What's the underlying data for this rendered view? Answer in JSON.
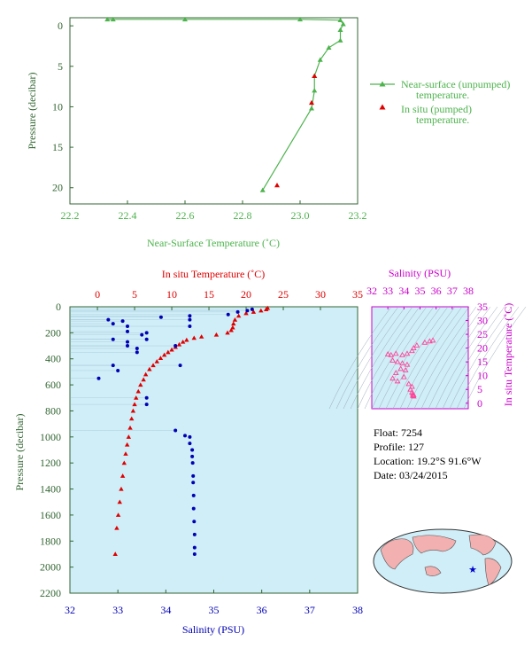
{
  "colors": {
    "green": "#4db34d",
    "red": "#e00000",
    "blue": "#0000b4",
    "magenta": "#cc00cc",
    "axis_green": "#336633",
    "panel_blue": "#cfeef8",
    "pink": "#ff4499"
  },
  "info": {
    "float": "Float:  7254",
    "profile": "Profile:  127",
    "location": "Location:  19.2°S  91.6°W",
    "date": "Date:  03/24/2015"
  },
  "footer_text": "",
  "chart_data": [
    {
      "type": "line",
      "xlabel": "Near-Surface Temperature (˚C)",
      "ylabel": "Pressure (decibar)",
      "xlim": [
        22.2,
        23.2
      ],
      "ylim": [
        22,
        -1
      ],
      "x_ticks": [
        "22.2",
        "22.4",
        "22.6",
        "22.8",
        "23.0",
        "23.2"
      ],
      "y_ticks": [
        "0",
        "5",
        "10",
        "15",
        "20"
      ],
      "legend_position": "right",
      "series": [
        {
          "name": "Near-surface (unpumped) temperature.",
          "name_lines": [
            "Near-surface (unpumped)",
            "temperature."
          ],
          "x": [
            22.33,
            22.35,
            22.6,
            23.0,
            23.14,
            23.15,
            23.14,
            23.14,
            23.1,
            23.07,
            23.05,
            23.05,
            23.04,
            22.87
          ],
          "y": [
            -0.8,
            -0.8,
            -0.8,
            -0.8,
            -0.7,
            -0.2,
            0.5,
            1.8,
            2.7,
            4.2,
            6.2,
            8.0,
            10.2,
            20.3
          ]
        },
        {
          "name": "In situ (pumped) temperature.",
          "name_lines": [
            "In situ (pumped)",
            "temperature."
          ],
          "x": [
            23.05,
            23.04,
            22.92
          ],
          "y": [
            6.2,
            9.5,
            19.7
          ]
        }
      ]
    },
    {
      "type": "scatter",
      "xlabel": "Salinity (PSU)",
      "x2label": "In situ Temperature (˚C)",
      "ylabel": "Pressure (decibar)",
      "xlim": [
        32,
        38
      ],
      "x2lim": [
        -3.7,
        35
      ],
      "ylim": [
        2200,
        0
      ],
      "x_ticks": [
        "32",
        "33",
        "34",
        "35",
        "36",
        "37",
        "38"
      ],
      "x2_ticks": [
        "0",
        "5",
        "10",
        "15",
        "20",
        "25",
        "30",
        "35"
      ],
      "y_ticks": [
        "0",
        "200",
        "400",
        "600",
        "800",
        "1000",
        "1200",
        "1400",
        "1600",
        "1800",
        "2000",
        "2200"
      ],
      "series": [
        {
          "name": "Temperature",
          "temp": [
            22.9,
            22.7,
            22.0,
            21.0,
            20.0,
            19.0,
            18.5,
            18.3,
            18.2,
            18.0,
            17.5,
            16.0,
            14.0,
            13.0,
            12.0,
            11.5,
            11.0,
            10.5,
            10.0,
            9.5,
            9.0,
            8.5,
            8.0,
            7.5,
            7.0,
            6.5,
            6.2,
            5.8,
            5.5,
            5.2,
            5.0,
            4.8,
            4.6,
            4.4,
            4.2,
            4.0,
            3.8,
            3.6,
            3.4,
            3.2,
            3.0,
            2.8,
            2.6,
            2.4
          ],
          "p": [
            10,
            20,
            30,
            40,
            50,
            70,
            100,
            130,
            160,
            180,
            200,
            215,
            230,
            240,
            255,
            270,
            290,
            310,
            330,
            350,
            370,
            395,
            420,
            450,
            480,
            520,
            560,
            600,
            650,
            700,
            750,
            800,
            860,
            930,
            1000,
            1060,
            1130,
            1200,
            1300,
            1400,
            1500,
            1600,
            1700,
            1900
          ]
        },
        {
          "name": "Salinity",
          "sal": [
            35.8,
            35.7,
            35.5,
            35.3,
            34.5,
            34.5,
            34.5,
            33.9,
            33.1,
            32.9,
            32.8,
            33.2,
            33.2,
            33.5,
            33.6,
            32.9,
            33.6,
            33.2,
            33.2,
            34.2,
            33.4,
            33.4,
            32.9,
            34.3,
            33.0,
            32.6,
            33.6,
            33.6,
            34.2,
            34.4,
            34.5,
            34.5,
            34.55,
            34.55,
            34.56,
            34.57,
            34.57,
            34.58,
            34.58,
            34.59,
            34.6,
            34.6,
            34.6
          ],
          "p": [
            20,
            30,
            40,
            60,
            70,
            100,
            150,
            80,
            110,
            130,
            100,
            150,
            190,
            215,
            200,
            250,
            250,
            270,
            300,
            300,
            320,
            350,
            450,
            450,
            490,
            550,
            700,
            750,
            950,
            990,
            1000,
            1050,
            1100,
            1150,
            1200,
            1300,
            1350,
            1450,
            1550,
            1650,
            1750,
            1850,
            1900
          ]
        }
      ]
    },
    {
      "type": "scatter",
      "xlabel": "Salinity (PSU)",
      "ylabel": "In situ Temperature (˚C)",
      "xlim": [
        32,
        38
      ],
      "ylim": [
        -2,
        35
      ],
      "x_ticks": [
        "32",
        "33",
        "34",
        "35",
        "36",
        "37",
        "38"
      ],
      "y_ticks": [
        "0",
        "5",
        "10",
        "15",
        "20",
        "25",
        "30",
        "35"
      ],
      "series": [
        {
          "name": "TS",
          "sal": [
            35.8,
            35.6,
            35.3,
            34.8,
            34.6,
            34.5,
            34.2,
            33.9,
            33.5,
            33.2,
            33.0,
            33.3,
            33.6,
            33.9,
            34.2,
            34.1,
            33.8,
            33.5,
            33.3,
            33.6,
            34.0,
            34.3,
            34.5,
            34.4,
            34.5,
            34.55,
            34.6,
            34.55,
            34.6
          ],
          "t": [
            22.8,
            22.5,
            22.0,
            21.0,
            20.0,
            19.0,
            18.0,
            17.5,
            18.0,
            17.5,
            17.8,
            15.5,
            15.0,
            14.5,
            14.0,
            12.0,
            12.5,
            11.0,
            9.0,
            8.0,
            9.5,
            7.0,
            6.0,
            5.0,
            4.0,
            3.5,
            3.0,
            2.8,
            2.5
          ]
        }
      ]
    }
  ]
}
